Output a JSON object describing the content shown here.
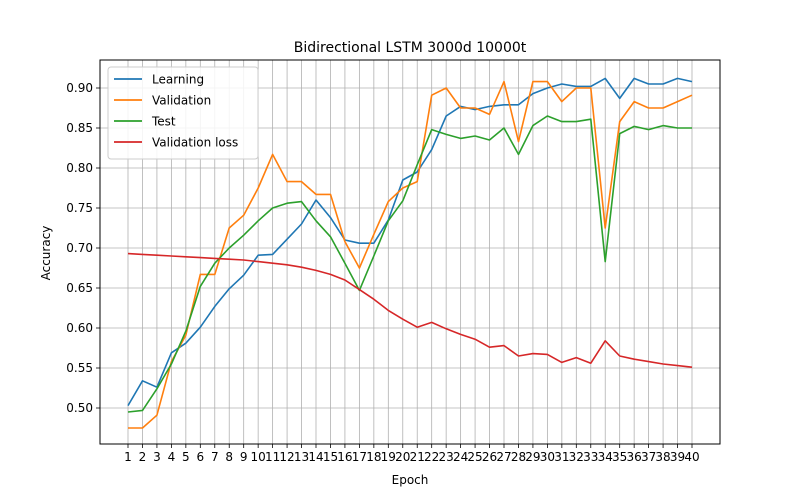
{
  "chart_data": {
    "type": "line",
    "title": "Bidirectional LSTM 3000d 10000t",
    "xlabel": "Epoch",
    "ylabel": "Accuracy",
    "x": [
      1,
      2,
      3,
      4,
      5,
      6,
      7,
      8,
      9,
      10,
      11,
      12,
      13,
      14,
      15,
      16,
      17,
      18,
      19,
      20,
      21,
      22,
      23,
      24,
      25,
      26,
      27,
      28,
      29,
      30,
      31,
      32,
      33,
      34,
      35,
      36,
      37,
      38,
      39,
      40
    ],
    "xlim": [
      1,
      40
    ],
    "ylim": [
      0.455,
      0.935
    ],
    "yticks": [
      0.5,
      0.55,
      0.6,
      0.65,
      0.7,
      0.75,
      0.8,
      0.85,
      0.9
    ],
    "ytick_labels": [
      "0.50",
      "0.55",
      "0.60",
      "0.65",
      "0.70",
      "0.75",
      "0.80",
      "0.85",
      "0.90"
    ],
    "grid": true,
    "legend_position": "top-left",
    "series": [
      {
        "name": "Learning",
        "color": "#1f77b4",
        "values": [
          0.503,
          0.534,
          0.526,
          0.569,
          0.581,
          0.601,
          0.627,
          0.649,
          0.666,
          0.691,
          0.692,
          0.711,
          0.73,
          0.76,
          0.738,
          0.71,
          0.706,
          0.706,
          0.735,
          0.785,
          0.795,
          0.823,
          0.865,
          0.877,
          0.873,
          0.877,
          0.879,
          0.879,
          0.893,
          0.9,
          0.905,
          0.902,
          0.902,
          0.912,
          0.887,
          0.912,
          0.905,
          0.905,
          0.912,
          0.908
        ]
      },
      {
        "name": "Validation",
        "color": "#ff7f0e",
        "values": [
          0.475,
          0.475,
          0.491,
          0.558,
          0.591,
          0.667,
          0.667,
          0.725,
          0.741,
          0.775,
          0.817,
          0.783,
          0.783,
          0.767,
          0.767,
          0.708,
          0.675,
          0.717,
          0.758,
          0.775,
          0.783,
          0.891,
          0.9,
          0.875,
          0.875,
          0.867,
          0.908,
          0.833,
          0.908,
          0.908,
          0.883,
          0.9,
          0.9,
          0.725,
          0.858,
          0.883,
          0.875,
          0.875,
          0.883,
          0.891
        ]
      },
      {
        "name": "Test",
        "color": "#2ca02c",
        "values": [
          0.495,
          0.497,
          0.524,
          0.555,
          0.596,
          0.652,
          0.681,
          0.7,
          0.716,
          0.734,
          0.75,
          0.756,
          0.758,
          0.734,
          0.714,
          0.681,
          0.647,
          0.69,
          0.734,
          0.759,
          0.804,
          0.848,
          0.842,
          0.837,
          0.84,
          0.835,
          0.85,
          0.817,
          0.853,
          0.865,
          0.858,
          0.858,
          0.861,
          0.683,
          0.843,
          0.852,
          0.848,
          0.853,
          0.85,
          0.85
        ]
      },
      {
        "name": "Validation loss",
        "color": "#d62728",
        "values": [
          0.693,
          0.692,
          0.691,
          0.69,
          0.689,
          0.688,
          0.687,
          0.686,
          0.685,
          0.683,
          0.681,
          0.679,
          0.676,
          0.672,
          0.667,
          0.66,
          0.648,
          0.636,
          0.622,
          0.611,
          0.601,
          0.607,
          0.599,
          0.592,
          0.586,
          0.576,
          0.578,
          0.565,
          0.568,
          0.567,
          0.557,
          0.563,
          0.556,
          0.584,
          0.565,
          0.561,
          0.558,
          0.555,
          0.553,
          0.551
        ]
      }
    ]
  }
}
